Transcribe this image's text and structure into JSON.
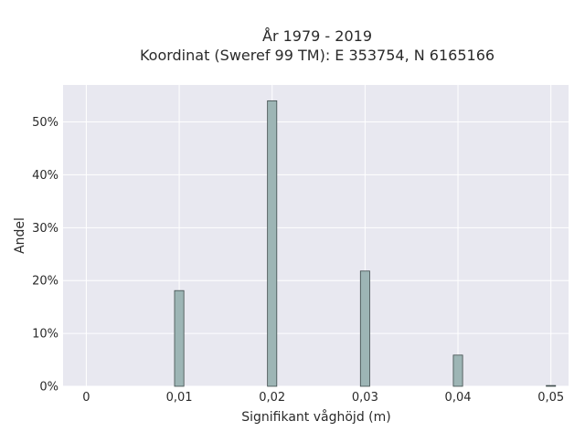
{
  "chart_data": {
    "type": "bar",
    "title": "År 1979 - 2019",
    "subtitle": "Koordinat (Sweref 99 TM): E 353754, N 6165166",
    "xlabel": "Signifikant våghöjd (m)",
    "ylabel": "Andel",
    "x_ticks": [
      "0",
      "0,01",
      "0,02",
      "0,03",
      "0,04",
      "0,05"
    ],
    "x_tick_values": [
      0,
      0.01,
      0.02,
      0.03,
      0.04,
      0.05
    ],
    "y_ticks": [
      "0%",
      "10%",
      "20%",
      "30%",
      "40%",
      "50%"
    ],
    "y_tick_values": [
      0,
      10,
      20,
      30,
      40,
      50
    ],
    "xlim": [
      -0.0025,
      0.0519
    ],
    "ylim": [
      0,
      57
    ],
    "bar_width": 0.001,
    "x": [
      0.01,
      0.02,
      0.03,
      0.04,
      0.05
    ],
    "values": [
      18.1,
      54.0,
      21.8,
      5.9,
      0.15
    ],
    "grid": true,
    "colors": {
      "plot_background": "#E8E8F0",
      "bar_fill": "#9DB5B5",
      "bar_stroke": "#3d4a4a",
      "grid": "#ffffff"
    }
  }
}
